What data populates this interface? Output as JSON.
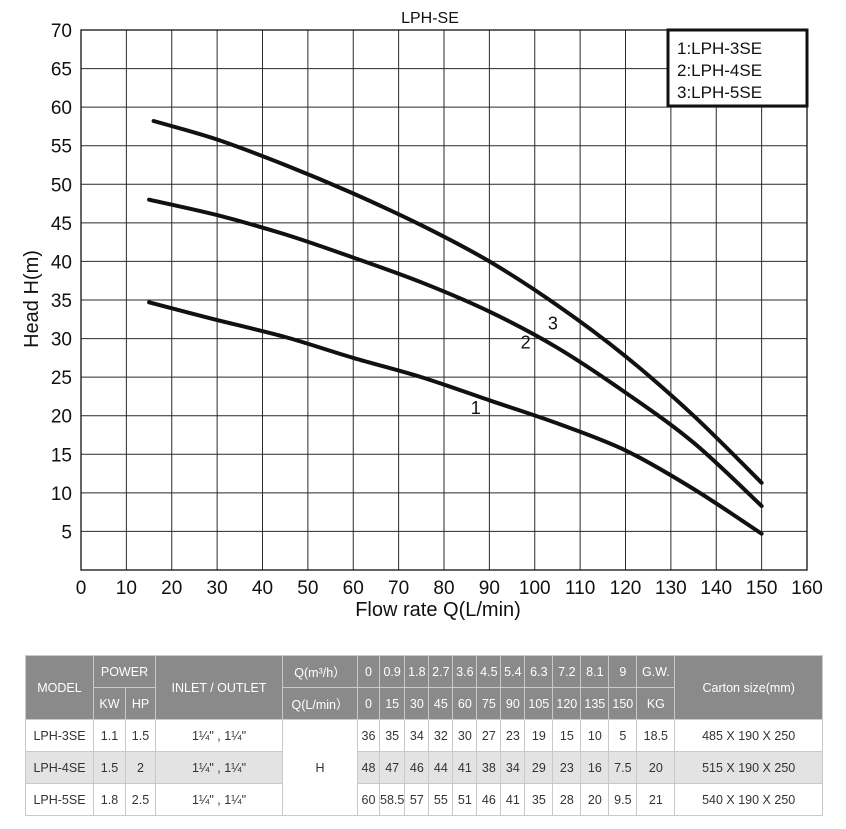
{
  "chart_data": {
    "type": "line",
    "title": "LPH-SE",
    "xlabel": "Flow rate Q(L/min)",
    "ylabel": "Head H(m)",
    "xlim": [
      0,
      160
    ],
    "ylim": [
      0,
      70
    ],
    "x_ticks": [
      "0",
      "10",
      "20",
      "30",
      "40",
      "50",
      "60",
      "70",
      "80",
      "90",
      "100",
      "110",
      "120",
      "130",
      "140",
      "150",
      "160"
    ],
    "y_ticks": [
      "5",
      "10",
      "15",
      "20",
      "25",
      "30",
      "35",
      "40",
      "45",
      "50",
      "55",
      "60",
      "65",
      "70"
    ],
    "grid": true,
    "legend": [
      "1:LPH-3SE",
      "2:LPH-4SE",
      "3:LPH-5SE"
    ],
    "legend_position": "top-right",
    "series": [
      {
        "name": "1",
        "x": [
          15,
          30,
          45,
          60,
          75,
          90,
          105,
          120,
          135,
          150
        ],
        "y": [
          34.7,
          32.4,
          30.2,
          27.5,
          25,
          22,
          19,
          15.5,
          10.5,
          4.7
        ]
      },
      {
        "name": "2",
        "x": [
          15,
          30,
          45,
          60,
          75,
          90,
          105,
          120,
          135,
          150
        ],
        "y": [
          48,
          46,
          43.5,
          40.5,
          37.3,
          33.5,
          28.8,
          23,
          16.5,
          8.3
        ]
      },
      {
        "name": "3",
        "x": [
          16,
          30,
          45,
          60,
          75,
          90,
          105,
          120,
          135,
          150
        ],
        "y": [
          58.2,
          55.8,
          52.5,
          48.8,
          44.7,
          40,
          34.3,
          27.7,
          20,
          11.3
        ]
      }
    ]
  },
  "table": {
    "headers": {
      "model": "MODEL",
      "power": "POWER",
      "kw": "KW",
      "hp": "HP",
      "inlet_outlet": "INLET / OUTLET",
      "q_m3h": "Q(m³/h）",
      "q_lmin": "Q(L/min）",
      "gw": "G.W.",
      "kg": "KG",
      "carton": "Carton size(mm)",
      "h": "H"
    },
    "q_m3h_values": [
      "0",
      "0.9",
      "1.8",
      "2.7",
      "3.6",
      "4.5",
      "5.4",
      "6.3",
      "7.2",
      "8.1",
      "9"
    ],
    "q_lmin_values": [
      "0",
      "15",
      "30",
      "45",
      "60",
      "75",
      "90",
      "105",
      "120",
      "135",
      "150"
    ],
    "rows": [
      {
        "model": "LPH-3SE",
        "kw": "1.1",
        "hp": "1.5",
        "inlet": "1¼\" , 1¼\"",
        "h": [
          "36",
          "35",
          "34",
          "32",
          "30",
          "27",
          "23",
          "19",
          "15",
          "10",
          "5"
        ],
        "gw": "18.5",
        "carton": "485 X 190 X 250"
      },
      {
        "model": "LPH-4SE",
        "kw": "1.5",
        "hp": "2",
        "inlet": "1¼\" , 1¼\"",
        "h": [
          "48",
          "47",
          "46",
          "44",
          "41",
          "38",
          "34",
          "29",
          "23",
          "16",
          "7.5"
        ],
        "gw": "20",
        "carton": "515 X 190 X 250"
      },
      {
        "model": "LPH-5SE",
        "kw": "1.8",
        "hp": "2.5",
        "inlet": "1¼\" , 1¼\"",
        "h": [
          "60",
          "58.5",
          "57",
          "55",
          "51",
          "46",
          "41",
          "35",
          "28",
          "20",
          "9.5"
        ],
        "gw": "21",
        "carton": "540 X 190 X 250"
      }
    ]
  }
}
